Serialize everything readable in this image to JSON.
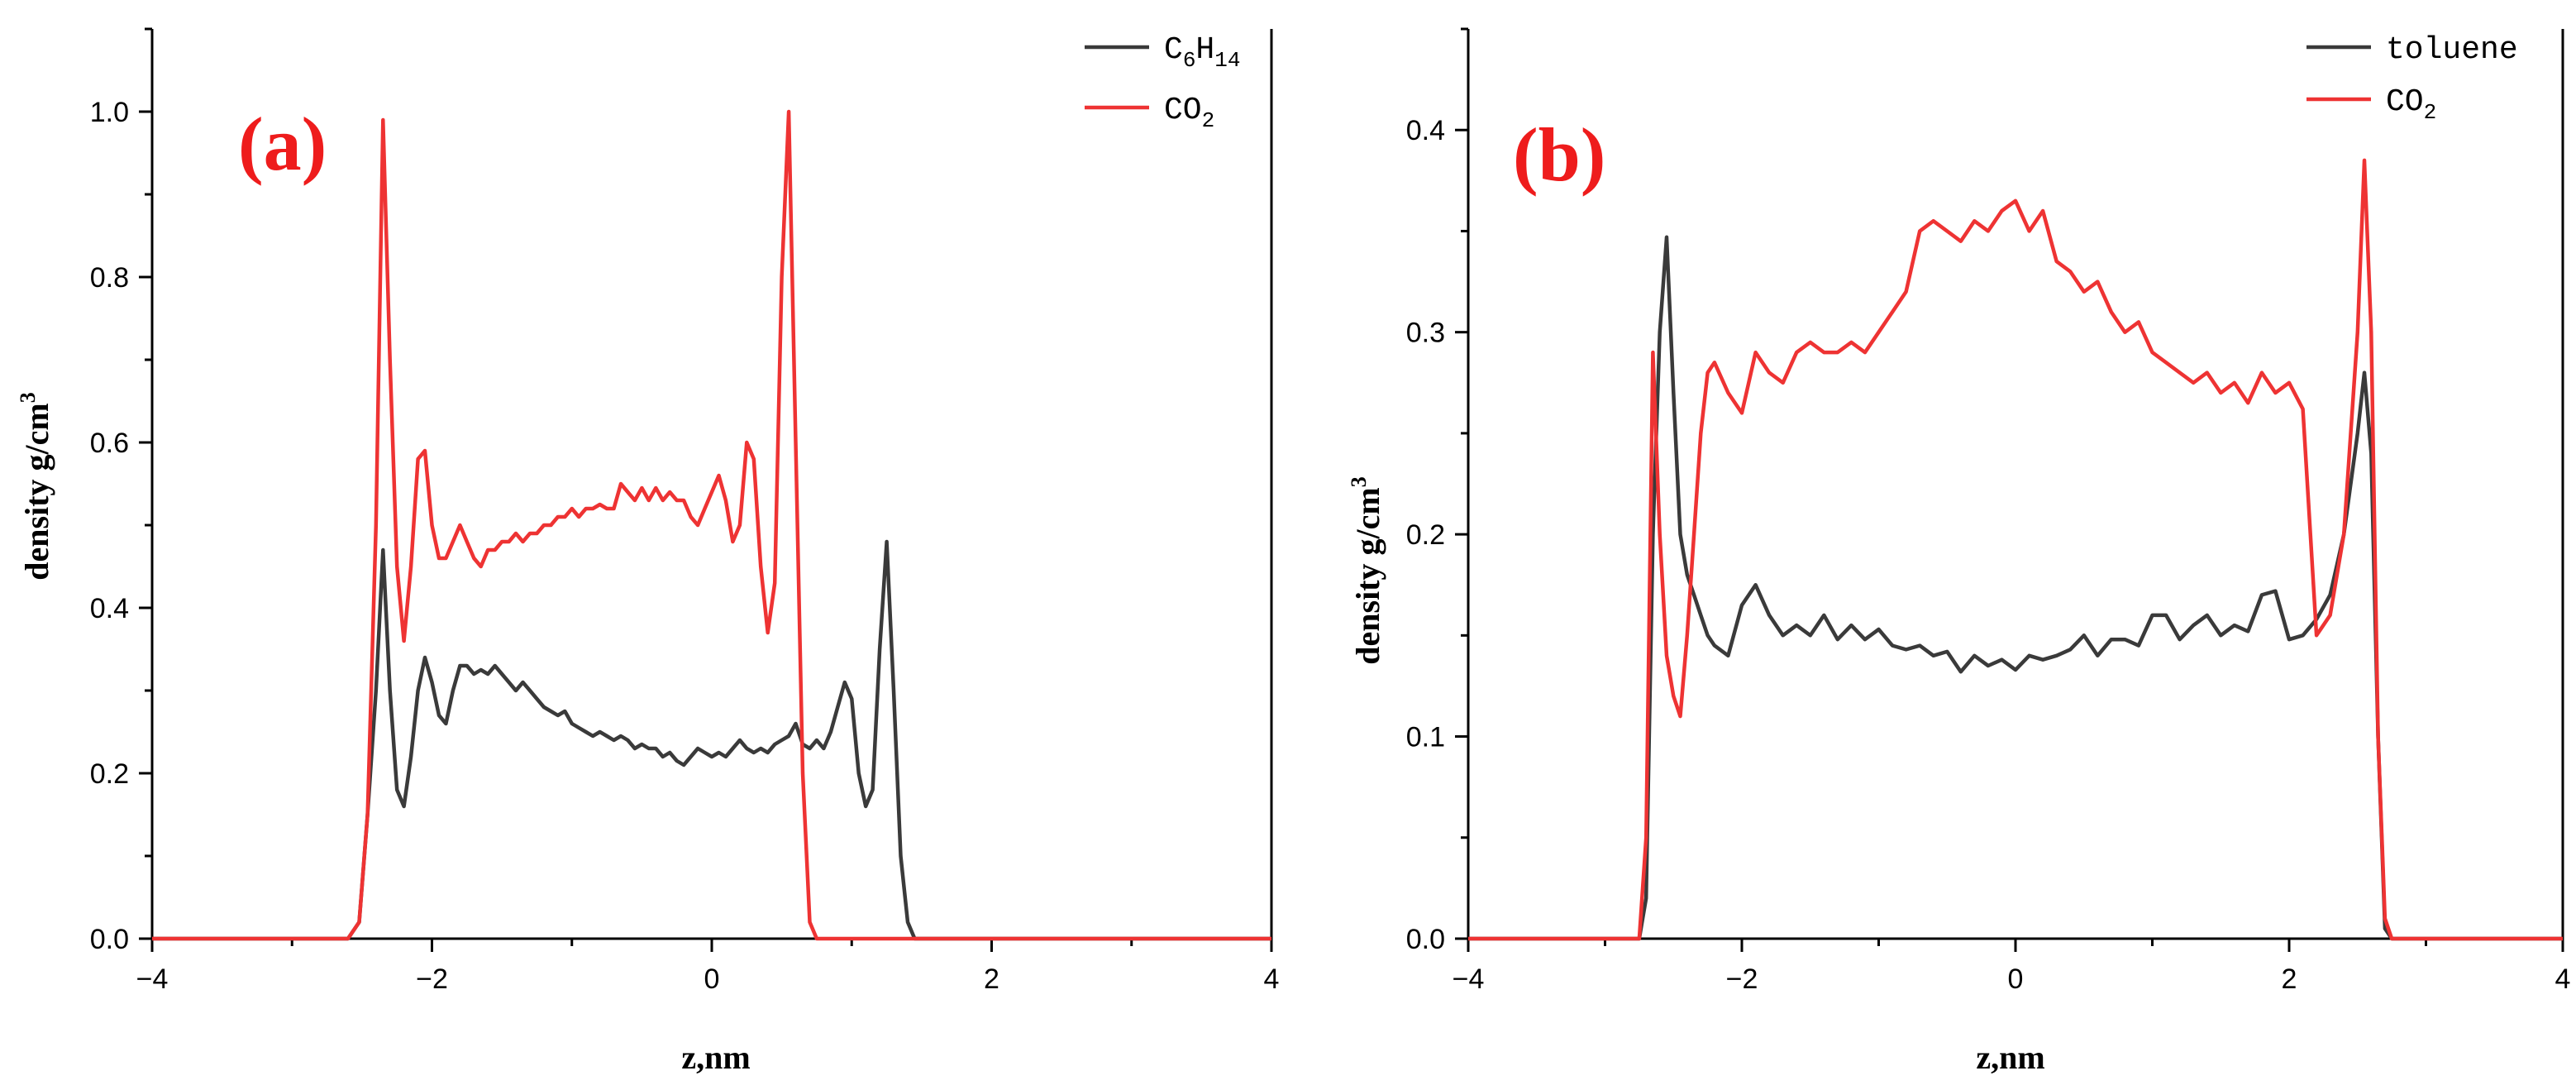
{
  "chart_data": [
    {
      "type": "line",
      "panel_label": "(a)",
      "xlabel": "z,nm",
      "ylabel": "density g/cm",
      "ylabel_sup": "3",
      "xlim": [
        -4,
        4
      ],
      "ylim": [
        0,
        1.1
      ],
      "x_ticks": [
        -4,
        -2,
        0,
        2,
        4
      ],
      "x_tick_labels": [
        "−4",
        "−2",
        "0",
        "2",
        "4"
      ],
      "y_ticks": [
        0.0,
        0.2,
        0.4,
        0.6,
        0.8,
        1.0
      ],
      "y_tick_labels": [
        "0.0",
        "0.2",
        "0.4",
        "0.6",
        "0.8",
        "1.0"
      ],
      "legend_position": "top-right",
      "series": [
        {
          "name": "C6H14",
          "name_base": "C",
          "name_sub1": "6",
          "name_mid": "H",
          "name_sub2": "14",
          "color": "#3a3a3a",
          "x": [
            -4,
            -2.6,
            -2.52,
            -2.46,
            -2.4,
            -2.35,
            -2.3,
            -2.25,
            -2.2,
            -2.15,
            -2.1,
            -2.05,
            -2.0,
            -1.95,
            -1.9,
            -1.85,
            -1.8,
            -1.75,
            -1.7,
            -1.65,
            -1.6,
            -1.55,
            -1.5,
            -1.45,
            -1.4,
            -1.35,
            -1.3,
            -1.25,
            -1.2,
            -1.15,
            -1.1,
            -1.05,
            -1.0,
            -0.95,
            -0.9,
            -0.85,
            -0.8,
            -0.75,
            -0.7,
            -0.65,
            -0.6,
            -0.55,
            -0.5,
            -0.45,
            -0.4,
            -0.35,
            -0.3,
            -0.25,
            -0.2,
            -0.15,
            -0.1,
            -0.05,
            0.0,
            0.05,
            0.1,
            0.15,
            0.2,
            0.25,
            0.3,
            0.35,
            0.4,
            0.45,
            0.5,
            0.55,
            0.6,
            0.65,
            0.7,
            0.75,
            0.8,
            0.85,
            0.9,
            0.95,
            1.0,
            1.05,
            1.1,
            1.15,
            1.2,
            1.25,
            1.3,
            1.35,
            1.4,
            1.45,
            1.5,
            1.55,
            1.6,
            1.65,
            1.7,
            1.75,
            1.8,
            1.85,
            1.9,
            1.95,
            2.0,
            2.05,
            2.1,
            2.15,
            2.2,
            2.25,
            2.3,
            2.35,
            2.4,
            2.45,
            2.5,
            2.55,
            2.6,
            2.65,
            4
          ],
          "y": [
            0,
            0,
            0.02,
            0.15,
            0.3,
            0.47,
            0.3,
            0.18,
            0.16,
            0.22,
            0.3,
            0.34,
            0.31,
            0.27,
            0.26,
            0.3,
            0.33,
            0.33,
            0.32,
            0.325,
            0.32,
            0.33,
            0.32,
            0.31,
            0.3,
            0.31,
            0.3,
            0.29,
            0.28,
            0.275,
            0.27,
            0.275,
            0.26,
            0.255,
            0.25,
            0.245,
            0.25,
            0.245,
            0.24,
            0.245,
            0.24,
            0.23,
            0.235,
            0.23,
            0.23,
            0.22,
            0.225,
            0.215,
            0.21,
            0.22,
            0.23,
            0.225,
            0.22,
            0.225,
            0.22,
            0.23,
            0.24,
            0.23,
            0.225,
            0.23,
            0.225,
            0.235,
            0.24,
            0.245,
            0.26,
            0.235,
            0.23,
            0.24,
            0.23,
            0.25,
            0.28,
            0.31,
            0.29,
            0.2,
            0.16,
            0.18,
            0.35,
            0.48,
            0.3,
            0.1,
            0.02,
            0,
            0,
            0,
            0,
            0,
            0,
            0,
            0,
            0,
            0,
            0,
            0,
            0,
            0,
            0,
            0,
            0,
            0,
            0,
            0,
            0,
            0,
            0,
            0,
            0,
            0
          ]
        },
        {
          "name": "CO2",
          "name_base": "CO",
          "name_sub1": "2",
          "color": "#ee3333",
          "x": [
            -4,
            -2.6,
            -2.52,
            -2.46,
            -2.4,
            -2.35,
            -2.3,
            -2.25,
            -2.2,
            -2.15,
            -2.1,
            -2.05,
            -2.0,
            -1.95,
            -1.9,
            -1.85,
            -1.8,
            -1.75,
            -1.7,
            -1.65,
            -1.6,
            -1.55,
            -1.5,
            -1.45,
            -1.4,
            -1.35,
            -1.3,
            -1.25,
            -1.2,
            -1.15,
            -1.1,
            -1.05,
            -1.0,
            -0.95,
            -0.9,
            -0.85,
            -0.8,
            -0.75,
            -0.7,
            -0.65,
            -0.6,
            -0.55,
            -0.5,
            -0.45,
            -0.4,
            -0.35,
            -0.3,
            -0.25,
            -0.2,
            -0.15,
            -0.1,
            -0.05,
            0.0,
            0.05,
            0.1,
            0.15,
            0.2,
            0.25,
            0.3,
            0.35,
            0.4,
            0.45,
            0.5,
            0.55,
            0.6,
            0.65,
            0.7,
            0.75,
            0.8,
            0.85,
            0.9,
            0.95,
            1.0,
            1.05,
            1.1,
            1.15,
            1.2,
            1.25,
            1.3,
            1.35,
            1.4,
            1.45,
            1.5,
            1.55,
            1.6,
            1.65,
            1.7,
            1.75,
            1.8,
            1.85,
            1.9,
            1.95,
            2.0,
            2.05,
            2.1,
            2.15,
            2.2,
            2.25,
            2.3,
            2.35,
            2.4,
            2.45,
            2.5,
            2.55,
            2.6,
            2.65,
            4
          ],
          "y": [
            0,
            0,
            0.02,
            0.15,
            0.5,
            0.99,
            0.7,
            0.45,
            0.36,
            0.45,
            0.58,
            0.59,
            0.5,
            0.46,
            0.46,
            0.48,
            0.5,
            0.48,
            0.46,
            0.45,
            0.47,
            0.47,
            0.48,
            0.48,
            0.49,
            0.48,
            0.49,
            0.49,
            0.5,
            0.5,
            0.51,
            0.51,
            0.52,
            0.51,
            0.52,
            0.52,
            0.525,
            0.52,
            0.52,
            0.55,
            0.54,
            0.53,
            0.545,
            0.53,
            0.545,
            0.53,
            0.54,
            0.53,
            0.53,
            0.51,
            0.5,
            0.52,
            0.54,
            0.56,
            0.53,
            0.48,
            0.5,
            0.6,
            0.58,
            0.45,
            0.37,
            0.43,
            0.8,
            1.0,
            0.6,
            0.2,
            0.02,
            0,
            0,
            0,
            0,
            0,
            0,
            0,
            0,
            0,
            0,
            0,
            0,
            0,
            0,
            0,
            0,
            0,
            0,
            0,
            0,
            0,
            0,
            0,
            0,
            0,
            0,
            0,
            0,
            0,
            0,
            0,
            0,
            0,
            0,
            0,
            0,
            0,
            0,
            0,
            0
          ]
        }
      ]
    },
    {
      "type": "line",
      "panel_label": "(b)",
      "xlabel": "z,nm",
      "ylabel": "density g/cm",
      "ylabel_sup": "3",
      "xlim": [
        -4,
        4
      ],
      "ylim": [
        0,
        0.45
      ],
      "x_ticks": [
        -4,
        -2,
        0,
        2,
        4
      ],
      "x_tick_labels": [
        "−4",
        "−2",
        "0",
        "2",
        "4"
      ],
      "y_ticks": [
        0.0,
        0.1,
        0.2,
        0.3,
        0.4
      ],
      "y_tick_labels": [
        "0.0",
        "0.1",
        "0.2",
        "0.3",
        "0.4"
      ],
      "legend_position": "top-right",
      "series": [
        {
          "name": "toluene",
          "color": "#3a3a3a",
          "x": [
            -4,
            -2.75,
            -2.7,
            -2.65,
            -2.6,
            -2.55,
            -2.5,
            -2.45,
            -2.4,
            -2.35,
            -2.3,
            -2.25,
            -2.2,
            -2.1,
            -2.0,
            -1.9,
            -1.8,
            -1.7,
            -1.6,
            -1.5,
            -1.4,
            -1.3,
            -1.2,
            -1.1,
            -1.0,
            -0.9,
            -0.8,
            -0.7,
            -0.6,
            -0.5,
            -0.4,
            -0.3,
            -0.2,
            -0.1,
            0.0,
            0.1,
            0.2,
            0.3,
            0.4,
            0.5,
            0.6,
            0.7,
            0.8,
            0.9,
            1.0,
            1.1,
            1.2,
            1.3,
            1.4,
            1.5,
            1.6,
            1.7,
            1.8,
            1.9,
            2.0,
            2.1,
            2.2,
            2.3,
            2.4,
            2.5,
            2.55,
            2.6,
            2.65,
            2.7,
            2.75,
            2.8,
            4
          ],
          "y": [
            0,
            0,
            0.02,
            0.2,
            0.3,
            0.347,
            0.27,
            0.2,
            0.18,
            0.17,
            0.16,
            0.15,
            0.145,
            0.14,
            0.165,
            0.175,
            0.16,
            0.15,
            0.155,
            0.15,
            0.16,
            0.148,
            0.155,
            0.148,
            0.153,
            0.145,
            0.143,
            0.145,
            0.14,
            0.142,
            0.132,
            0.14,
            0.135,
            0.138,
            0.133,
            0.14,
            0.138,
            0.14,
            0.143,
            0.15,
            0.14,
            0.148,
            0.148,
            0.145,
            0.16,
            0.16,
            0.148,
            0.155,
            0.16,
            0.15,
            0.155,
            0.152,
            0.17,
            0.172,
            0.148,
            0.15,
            0.158,
            0.17,
            0.2,
            0.25,
            0.28,
            0.24,
            0.1,
            0.005,
            0,
            0,
            0
          ]
        },
        {
          "name": "CO2",
          "name_base": "CO",
          "name_sub1": "2",
          "color": "#ee3333",
          "x": [
            -4,
            -2.75,
            -2.7,
            -2.65,
            -2.6,
            -2.55,
            -2.5,
            -2.45,
            -2.4,
            -2.35,
            -2.3,
            -2.25,
            -2.2,
            -2.1,
            -2.0,
            -1.9,
            -1.8,
            -1.7,
            -1.6,
            -1.5,
            -1.4,
            -1.3,
            -1.2,
            -1.1,
            -1.0,
            -0.9,
            -0.8,
            -0.7,
            -0.6,
            -0.5,
            -0.4,
            -0.3,
            -0.2,
            -0.1,
            0.0,
            0.1,
            0.2,
            0.3,
            0.4,
            0.5,
            0.6,
            0.7,
            0.8,
            0.9,
            1.0,
            1.1,
            1.2,
            1.3,
            1.4,
            1.5,
            1.6,
            1.7,
            1.8,
            1.9,
            2.0,
            2.1,
            2.2,
            2.3,
            2.4,
            2.5,
            2.55,
            2.6,
            2.65,
            2.7,
            2.75,
            2.8,
            4
          ],
          "y": [
            0,
            0,
            0.05,
            0.29,
            0.2,
            0.14,
            0.12,
            0.11,
            0.15,
            0.2,
            0.25,
            0.28,
            0.285,
            0.27,
            0.26,
            0.29,
            0.28,
            0.275,
            0.29,
            0.295,
            0.29,
            0.29,
            0.295,
            0.29,
            0.3,
            0.31,
            0.32,
            0.35,
            0.355,
            0.35,
            0.345,
            0.355,
            0.35,
            0.36,
            0.365,
            0.35,
            0.36,
            0.335,
            0.33,
            0.32,
            0.325,
            0.31,
            0.3,
            0.305,
            0.29,
            0.285,
            0.28,
            0.275,
            0.28,
            0.27,
            0.275,
            0.265,
            0.28,
            0.27,
            0.275,
            0.262,
            0.15,
            0.16,
            0.2,
            0.3,
            0.385,
            0.3,
            0.1,
            0.01,
            0,
            0,
            0
          ]
        }
      ]
    }
  ]
}
